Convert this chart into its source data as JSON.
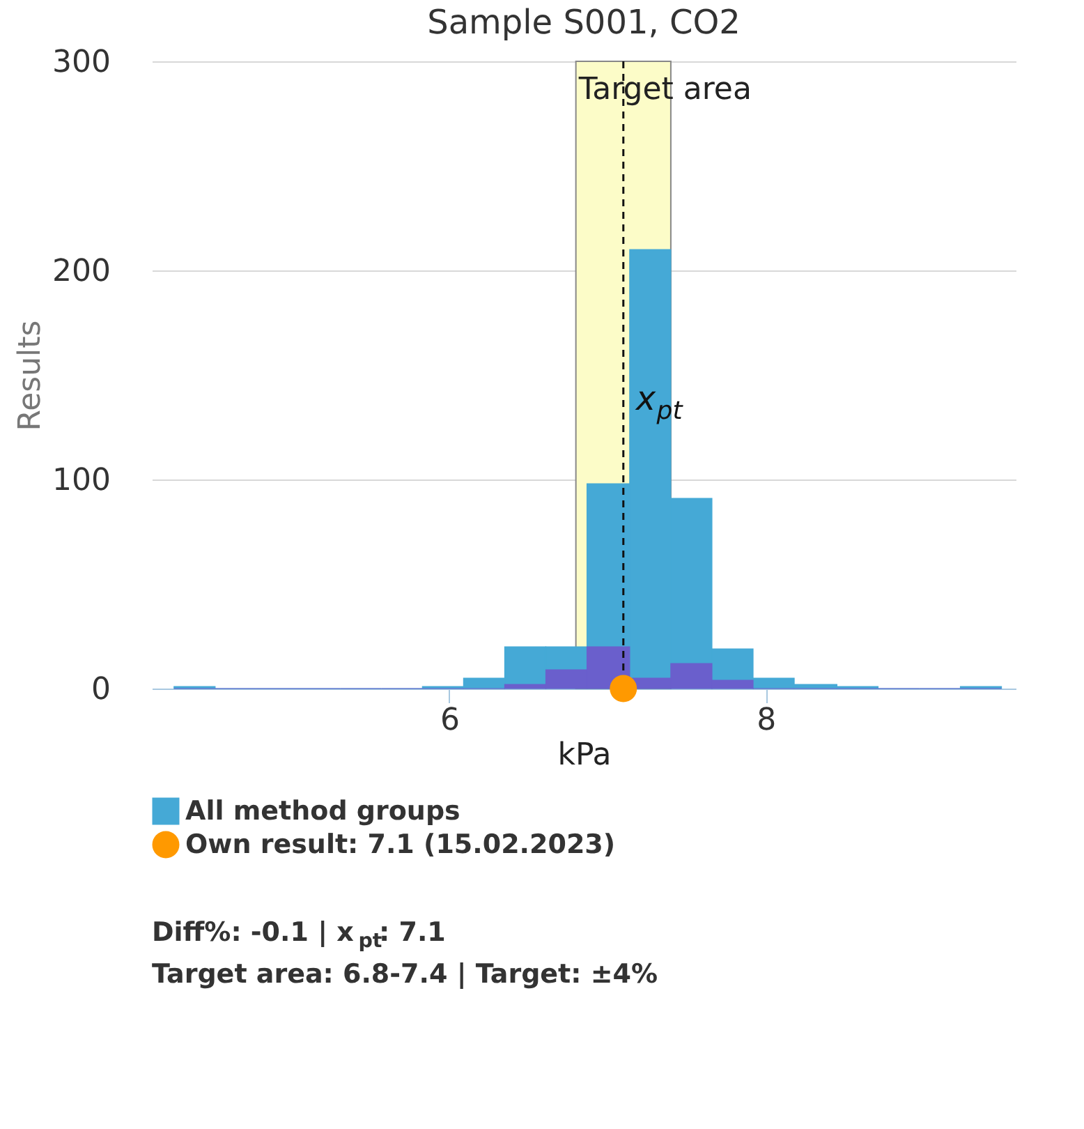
{
  "chart_data": {
    "type": "histogram",
    "title": "Sample S001, CO2",
    "xlabel": "kPa",
    "ylabel": "Results",
    "bins": [
      4.26,
      4.52,
      4.78,
      5.04,
      5.31,
      5.57,
      5.83,
      6.09,
      6.35,
      6.61,
      6.87,
      7.14,
      7.4,
      7.66,
      7.92,
      8.18,
      8.45,
      8.71,
      8.97,
      9.23,
      9.49
    ],
    "series": [
      {
        "name": "All method groups",
        "color": "#45a9d6",
        "values": [
          1,
          0,
          0,
          0,
          0,
          0,
          1,
          5,
          20,
          20,
          98,
          210,
          91,
          19,
          5,
          2,
          1,
          0,
          0,
          1
        ]
      },
      {
        "color": "#6a5fcc",
        "values": [
          0,
          0,
          0,
          0,
          0,
          0,
          0,
          0,
          2,
          9,
          20,
          5,
          12,
          4,
          0,
          0,
          0,
          0,
          0,
          0
        ]
      },
      {
        "name": "Own result: 7.1 (15.02.2023)",
        "type": "scatter",
        "color": "#ff9900",
        "x": [
          7.1
        ],
        "values": [
          0
        ]
      }
    ],
    "xlim": [
      4.12,
      9.58
    ],
    "ylim": [
      0,
      300
    ],
    "xticks": [
      6,
      8
    ],
    "yticks": [
      0,
      100,
      200,
      300
    ],
    "grid": "y",
    "legend": "bottom",
    "marker": "circle",
    "ref_lines": [
      {
        "axis": "x",
        "value": 7.1,
        "label": "x$_{pt}$",
        "line_style": "dashed"
      }
    ],
    "bands": [
      {
        "axis": "x",
        "from": 6.8,
        "to": 7.4,
        "label": "Target area",
        "color": "#fcfcc8"
      }
    ],
    "annotations": [
      "Diff%: -0.1 | x$_{pt}$: 7.1",
      "Target area: 6.8-7.4 | Target: ±4%"
    ]
  }
}
